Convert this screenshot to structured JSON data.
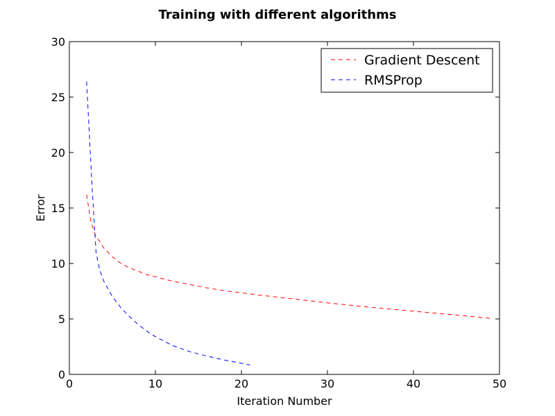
{
  "chart_data": {
    "type": "line",
    "title": "Training with different algorithms",
    "xlabel": "Iteration Number",
    "ylabel": "Error",
    "xlim": [
      0,
      50
    ],
    "ylim": [
      0,
      30
    ],
    "xticks": [
      0,
      10,
      20,
      30,
      40,
      50
    ],
    "yticks": [
      0,
      5,
      10,
      15,
      20,
      25,
      30
    ],
    "xtick_labels": [
      "0",
      "10",
      "20",
      "30",
      "40",
      "50"
    ],
    "ytick_labels": [
      "0",
      "5",
      "10",
      "15",
      "20",
      "25",
      "30"
    ],
    "grid": false,
    "legend_position": "top-right",
    "series": [
      {
        "name": "Gradient Descent",
        "color": "#ff0000",
        "line_style": "dashed",
        "x": [
          2,
          2.5,
          3,
          4,
          5,
          6,
          7,
          8,
          9,
          10,
          12,
          14,
          16,
          18,
          20,
          22,
          25,
          30,
          35,
          40,
          45,
          49
        ],
        "y": [
          16.2,
          13.8,
          12.6,
          11.4,
          10.6,
          10.0,
          9.6,
          9.3,
          9.0,
          8.8,
          8.4,
          8.1,
          7.8,
          7.55,
          7.35,
          7.15,
          6.9,
          6.45,
          6.05,
          5.7,
          5.35,
          5.05
        ]
      },
      {
        "name": "RMSProp",
        "color": "#0000ff",
        "line_style": "dashed",
        "x": [
          2,
          2.3,
          2.6,
          2.9,
          3.1,
          3.5,
          4,
          5,
          6,
          7,
          8,
          9,
          10,
          12,
          14,
          16,
          18,
          20,
          21
        ],
        "y": [
          26.4,
          22.0,
          17.5,
          13.5,
          11.0,
          9.5,
          8.4,
          7.0,
          6.0,
          5.2,
          4.5,
          3.9,
          3.4,
          2.6,
          2.05,
          1.65,
          1.3,
          1.0,
          0.85
        ]
      }
    ]
  }
}
